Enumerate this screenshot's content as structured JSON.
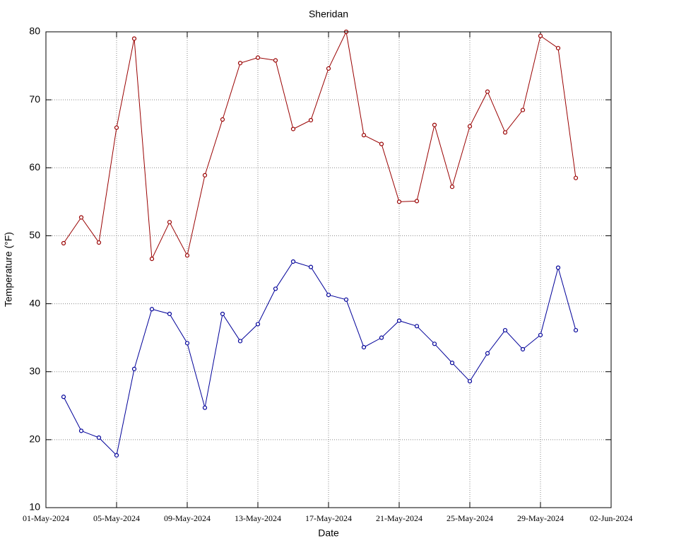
{
  "chart_data": {
    "type": "line",
    "title": "Sheridan",
    "x_label": "Date",
    "y_label": "Temperature (°F)",
    "x": [
      "2024-05-02",
      "2024-05-03",
      "2024-05-04",
      "2024-05-05",
      "2024-05-06",
      "2024-05-07",
      "2024-05-08",
      "2024-05-09",
      "2024-05-10",
      "2024-05-11",
      "2024-05-12",
      "2024-05-13",
      "2024-05-14",
      "2024-05-15",
      "2024-05-16",
      "2024-05-17",
      "2024-05-18",
      "2024-05-19",
      "2024-05-20",
      "2024-05-21",
      "2024-05-22",
      "2024-05-23",
      "2024-05-24",
      "2024-05-25",
      "2024-05-26",
      "2024-05-27",
      "2024-05-28",
      "2024-05-29",
      "2024-05-30",
      "2024-05-31"
    ],
    "series": [
      {
        "color": "#990000",
        "values": [
          48.9,
          52.7,
          49.0,
          65.9,
          79.0,
          46.6,
          52.0,
          47.1,
          58.9,
          67.1,
          75.4,
          76.2,
          75.8,
          65.7,
          67.0,
          74.6,
          80.0,
          64.8,
          63.5,
          55.0,
          55.1,
          66.3,
          57.2,
          66.1,
          71.2,
          65.2,
          68.5,
          79.4,
          77.6,
          58.5
        ]
      },
      {
        "color": "#000099",
        "values": [
          26.3,
          21.3,
          20.3,
          17.7,
          30.4,
          39.2,
          38.5,
          34.2,
          24.7,
          38.5,
          34.5,
          37.0,
          42.2,
          46.2,
          45.4,
          41.3,
          40.6,
          33.6,
          35.0,
          37.5,
          36.7,
          34.1,
          31.3,
          28.6,
          32.7,
          36.1,
          33.3,
          35.4,
          45.3,
          36.1
        ]
      }
    ],
    "xlim": [
      "2024-05-01",
      "2024-06-02"
    ],
    "xticks": [
      {
        "value": "2024-05-01",
        "label": "01-May-2024"
      },
      {
        "value": "2024-05-05",
        "label": "05-May-2024"
      },
      {
        "value": "2024-05-09",
        "label": "09-May-2024"
      },
      {
        "value": "2024-05-13",
        "label": "13-May-2024"
      },
      {
        "value": "2024-05-17",
        "label": "17-May-2024"
      },
      {
        "value": "2024-05-21",
        "label": "21-May-2024"
      },
      {
        "value": "2024-05-25",
        "label": "25-May-2024"
      },
      {
        "value": "2024-05-29",
        "label": "29-May-2024"
      },
      {
        "value": "2024-06-02",
        "label": "02-Jun-2024"
      }
    ],
    "ylim": [
      10,
      80
    ],
    "yticks": [
      10,
      20,
      30,
      40,
      50,
      60,
      70,
      80
    ],
    "grid": true
  }
}
